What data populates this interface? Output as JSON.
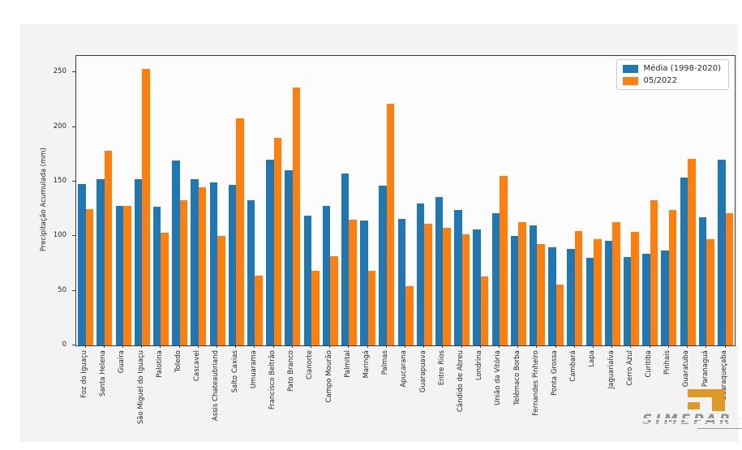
{
  "figure": {
    "background_color": "#f3f3f3",
    "plot_background_color": "#fcfcfc",
    "spine_color": "#3c3c3c"
  },
  "chart_data": {
    "type": "bar",
    "title": "",
    "xlabel": "",
    "ylabel": "Precipitação Acumulada (mm)",
    "ylim": [
      0,
      265
    ],
    "y_ticks": [
      0,
      50,
      100,
      150,
      200,
      250
    ],
    "grid": false,
    "legend_position": "upper right",
    "categories": [
      "Foz do Iguaçu",
      "Santa Helena",
      "Guaíra",
      "São Miguel do Iguaçu",
      "Palotina",
      "Toledo",
      "Cascavel",
      "Assis Chateaubriand",
      "Salto Caxias",
      "Umuarama",
      "Francisco Beltrão",
      "Pato Branco",
      "Cianorte",
      "Campo Mourão",
      "Palmital",
      "Maringá",
      "Palmas",
      "Apucarana",
      "Guarapuava",
      "Entre Rios",
      "Cândido de Abreu",
      "Londrina",
      "União da Vitória",
      "Telêmaco Borba",
      "Fernandes Pinheiro",
      "Ponta Grossa",
      "Cambará",
      "Lapa",
      "Jaguariaíva",
      "Cerro Azul",
      "Curitiba",
      "Pinhais",
      "Guaratuba",
      "Paranaguá",
      "Guaraqueçaba"
    ],
    "series": [
      {
        "name": "Média (1998-2020)",
        "color": "#1f77b4",
        "values": [
          148,
          152,
          128,
          152,
          127,
          169,
          152,
          149,
          147,
          133,
          170,
          160,
          119,
          128,
          157,
          114,
          146,
          116,
          130,
          136,
          124,
          106,
          121,
          100,
          110,
          90,
          88,
          80,
          96,
          81,
          84,
          87,
          154,
          117,
          170
        ]
      },
      {
        "name": "05/2022",
        "color": "#ff7f0e",
        "values": [
          125,
          178,
          128,
          253,
          103,
          133,
          145,
          100,
          208,
          64,
          190,
          236,
          68,
          82,
          115,
          68,
          221,
          54,
          111,
          108,
          102,
          63,
          155,
          113,
          93,
          56,
          105,
          97,
          113,
          104,
          133,
          124,
          171,
          97,
          121
        ]
      }
    ]
  },
  "logo": {
    "text": "SIMEPAR",
    "accent_color": "#dd9a28",
    "text_color": "#929292"
  }
}
